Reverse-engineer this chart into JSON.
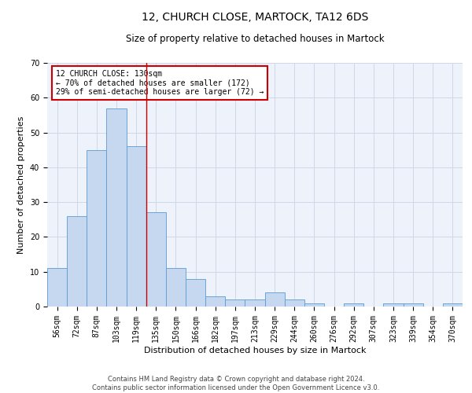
{
  "title": "12, CHURCH CLOSE, MARTOCK, TA12 6DS",
  "subtitle": "Size of property relative to detached houses in Martock",
  "xlabel": "Distribution of detached houses by size in Martock",
  "ylabel": "Number of detached properties",
  "categories": [
    "56sqm",
    "72sqm",
    "87sqm",
    "103sqm",
    "119sqm",
    "135sqm",
    "150sqm",
    "166sqm",
    "182sqm",
    "197sqm",
    "213sqm",
    "229sqm",
    "244sqm",
    "260sqm",
    "276sqm",
    "292sqm",
    "307sqm",
    "323sqm",
    "339sqm",
    "354sqm",
    "370sqm"
  ],
  "values": [
    11,
    26,
    45,
    57,
    46,
    27,
    11,
    8,
    3,
    2,
    2,
    4,
    2,
    1,
    0,
    1,
    0,
    1,
    1,
    0,
    1
  ],
  "bar_color": "#c5d8f0",
  "bar_edge_color": "#5b9bd5",
  "property_line_x": 4.5,
  "ylim": [
    0,
    70
  ],
  "yticks": [
    0,
    10,
    20,
    30,
    40,
    50,
    60,
    70
  ],
  "annotation_box_text": "12 CHURCH CLOSE: 130sqm\n← 70% of detached houses are smaller (172)\n29% of semi-detached houses are larger (72) →",
  "annotation_box_color": "#cc0000",
  "footer_line1": "Contains HM Land Registry data © Crown copyright and database right 2024.",
  "footer_line2": "Contains public sector information licensed under the Open Government Licence v3.0.",
  "title_fontsize": 10,
  "subtitle_fontsize": 8.5,
  "xlabel_fontsize": 8,
  "ylabel_fontsize": 8,
  "tick_fontsize": 7,
  "annotation_fontsize": 7,
  "footer_fontsize": 6,
  "grid_color": "#d0d8e8",
  "background_color": "#eef2fa"
}
